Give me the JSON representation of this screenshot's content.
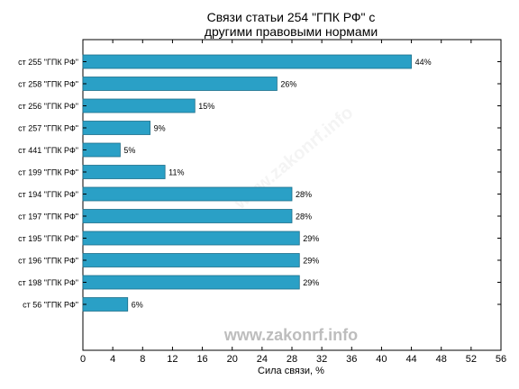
{
  "chart_data": {
    "type": "bar",
    "orientation": "horizontal",
    "title_lines": [
      "Связи статьи 254 \"ГПК РФ\" с",
      "другими правовыми нормами"
    ],
    "xlabel": "Сила связи, %",
    "ylabel": "",
    "xlim": [
      0,
      56
    ],
    "xticks": [
      0,
      4,
      8,
      12,
      16,
      20,
      24,
      28,
      32,
      36,
      40,
      44,
      48,
      52,
      56
    ],
    "grid": false,
    "categories": [
      "ст 255 \"ГПК РФ\"",
      "ст 258 \"ГПК РФ\"",
      "ст 256 \"ГПК РФ\"",
      "ст 257 \"ГПК РФ\"",
      "ст 441 \"ГПК РФ\"",
      "ст 199 \"ГПК РФ\"",
      "ст 194 \"ГПК РФ\"",
      "ст 197 \"ГПК РФ\"",
      "ст 195 \"ГПК РФ\"",
      "ст 196 \"ГПК РФ\"",
      "ст 198 \"ГПК РФ\"",
      "ст 56 \"ГПК РФ\""
    ],
    "values": [
      44,
      26,
      15,
      9,
      5,
      11,
      28,
      28,
      29,
      29,
      29,
      6
    ],
    "data_labels": [
      "44%",
      "26%",
      "15%",
      "9%",
      "5%",
      "11%",
      "28%",
      "28%",
      "29%",
      "29%",
      "29%",
      "6%"
    ],
    "bar_color": "#2aa0c6",
    "bar_edge_color": "#1d6f8a"
  },
  "watermark": {
    "text": "www.zakonrf.info",
    "color": "#bdbdbd"
  }
}
